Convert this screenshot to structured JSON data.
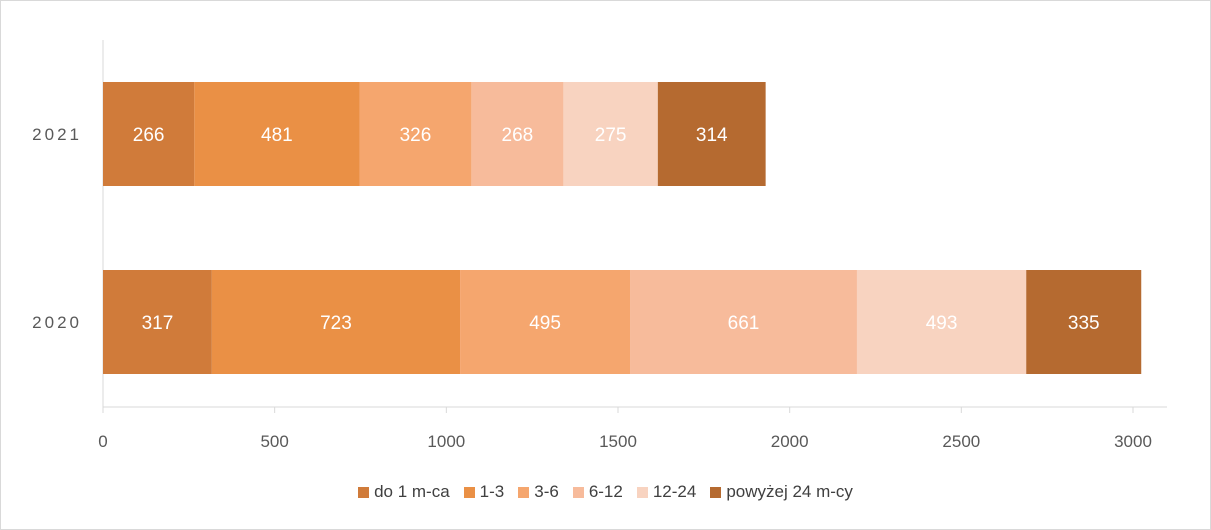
{
  "chart_data": {
    "type": "bar",
    "orientation": "horizontal",
    "stacked": true,
    "categories": [
      "2021",
      "2020"
    ],
    "series": [
      {
        "name": "do 1 m-ca",
        "values": [
          266,
          317
        ],
        "color": "#D07B3A",
        "label_color": "#ffffff"
      },
      {
        "name": "1-3",
        "values": [
          481,
          723
        ],
        "color": "#EA9045",
        "label_color": "#ffffff"
      },
      {
        "name": "3-6",
        "values": [
          326,
          495
        ],
        "color": "#F5A66E",
        "label_color": "#ffffff"
      },
      {
        "name": "6-12",
        "values": [
          268,
          661
        ],
        "color": "#F7BB9B",
        "label_color": "#ffffff"
      },
      {
        "name": "12-24",
        "values": [
          275,
          493
        ],
        "color": "#F8D3C0",
        "label_color": "#ffffff"
      },
      {
        "name": "powyżej 24 m-cy",
        "values": [
          314,
          335
        ],
        "color": "#B56A30",
        "label_color": "#ffffff"
      }
    ],
    "xlim": [
      0,
      3000
    ],
    "xticks": [
      "0",
      "500",
      "1000",
      "1500",
      "2000",
      "2500",
      "3000"
    ],
    "grid": false,
    "legend_position": "bottom",
    "title": "",
    "xlabel": "",
    "ylabel": ""
  }
}
